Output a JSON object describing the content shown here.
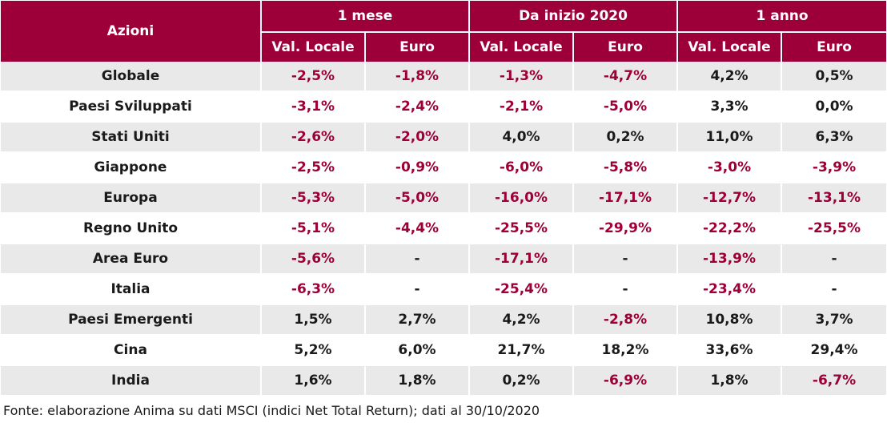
{
  "table": {
    "label_header": "Azioni",
    "groups": [
      "1 mese",
      "Da inizio 2020",
      "1 anno"
    ],
    "subheaders": [
      "Val. Locale",
      "Euro",
      "Val. Locale",
      "Euro",
      "Val. Locale",
      "Euro"
    ],
    "negative_color": "#9d0038",
    "header_color": "#9d0038",
    "rows": [
      {
        "label": "Globale",
        "values": [
          "-2,5%",
          "-1,8%",
          "-1,3%",
          "-4,7%",
          "4,2%",
          "0,5%"
        ]
      },
      {
        "label": "Paesi Sviluppati",
        "values": [
          "-3,1%",
          "-2,4%",
          "-2,1%",
          "-5,0%",
          "3,3%",
          "0,0%"
        ]
      },
      {
        "label": "Stati Uniti",
        "values": [
          "-2,6%",
          "-2,0%",
          "4,0%",
          "0,2%",
          "11,0%",
          "6,3%"
        ]
      },
      {
        "label": "Giappone",
        "values": [
          "-2,5%",
          "-0,9%",
          "-6,0%",
          "-5,8%",
          "-3,0%",
          "-3,9%"
        ]
      },
      {
        "label": "Europa",
        "values": [
          "-5,3%",
          "-5,0%",
          "-16,0%",
          "-17,1%",
          "-12,7%",
          "-13,1%"
        ]
      },
      {
        "label": "Regno Unito",
        "values": [
          "-5,1%",
          "-4,4%",
          "-25,5%",
          "-29,9%",
          "-22,2%",
          "-25,5%"
        ]
      },
      {
        "label": "Area Euro",
        "values": [
          "-5,6%",
          "-",
          "-17,1%",
          "-",
          "-13,9%",
          "-"
        ]
      },
      {
        "label": "Italia",
        "values": [
          "-6,3%",
          "-",
          "-25,4%",
          "-",
          "-23,4%",
          "-"
        ]
      },
      {
        "label": "Paesi Emergenti",
        "values": [
          "1,5%",
          "2,7%",
          "4,2%",
          "-2,8%",
          "10,8%",
          "3,7%"
        ]
      },
      {
        "label": "Cina",
        "values": [
          "5,2%",
          "6,0%",
          "21,7%",
          "18,2%",
          "33,6%",
          "29,4%"
        ]
      },
      {
        "label": "India",
        "values": [
          "1,6%",
          "1,8%",
          "0,2%",
          "-6,9%",
          "1,8%",
          "-6,7%"
        ]
      }
    ]
  },
  "source": "Fonte: elaborazione Anima su dati MSCI (indici Net Total Return); dati al 30/10/2020"
}
